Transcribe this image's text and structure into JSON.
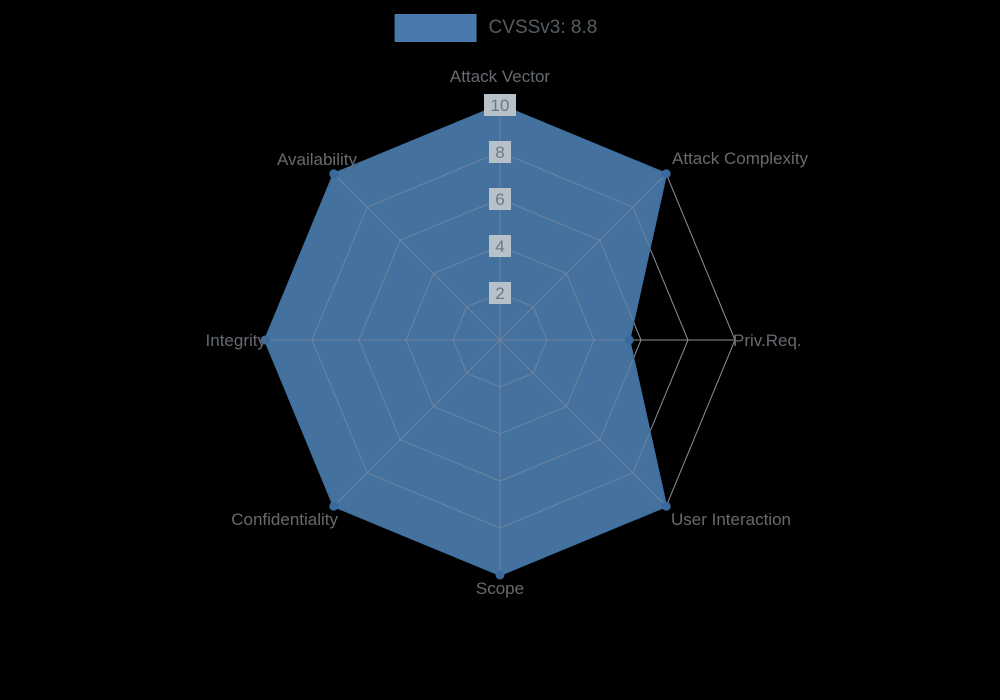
{
  "chart_data": {
    "type": "radar",
    "title": "CVSSv3: 8.8",
    "legend_position": "top",
    "grid": true,
    "categories": [
      "Attack Vector",
      "Attack Complexity",
      "Priv.Req.",
      "User Interaction",
      "Scope",
      "Confidentiality",
      "Integrity",
      "Availability"
    ],
    "series": [
      {
        "name": "CVSSv3: 8.8",
        "values": [
          10,
          10,
          5.5,
          10,
          10,
          10,
          10,
          10
        ]
      }
    ],
    "ticks": [
      "2",
      "4",
      "6",
      "8",
      "10"
    ],
    "tick_values": [
      2,
      4,
      6,
      8,
      10
    ],
    "rlim": [
      0,
      10
    ],
    "colors": {
      "fill": "#4a7aab",
      "fill_opacity": 0.93,
      "stroke": "#41719f",
      "point": "#3a699b",
      "grid": "#8b9094",
      "tick_text": "#6e777d",
      "tick_backdrop": "#b7c1c9",
      "label_text": "#666b70",
      "legend_text": "#565d62",
      "background": "#000000"
    }
  }
}
